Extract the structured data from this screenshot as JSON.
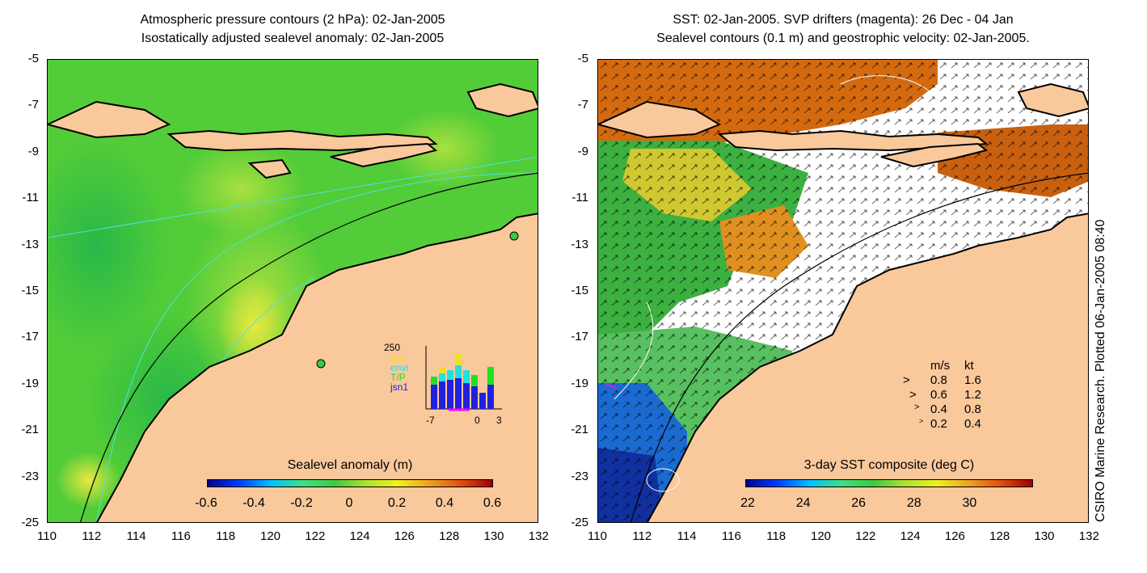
{
  "left_panel": {
    "title_line1": "Atmospheric pressure contours (2 hPa): 02-Jan-2005",
    "title_line2": "Isostatically adjusted sealevel anomaly: 02-Jan-2005",
    "colorbar_label": "Sealevel anomaly (m)",
    "colorbar_ticks": [
      "-0.6",
      "-0.4",
      "-0.2",
      "0",
      "0.2",
      "0.4",
      "0.6"
    ],
    "inset": {
      "ymax_label": "250",
      "legend": [
        {
          "text": "gfo",
          "color": "#f0e020"
        },
        {
          "text": "envi",
          "color": "#20e0e0"
        },
        {
          "text": "T/P",
          "color": "#20e020"
        },
        {
          "text": "jsn1",
          "color": "#2020e0"
        }
      ],
      "x_ticks": [
        "-7",
        "0",
        "3"
      ]
    }
  },
  "right_panel": {
    "title_line1": "SST: 02-Jan-2005. SVP drifters (magenta): 26 Dec - 04 Jan",
    "title_line2": "Sealevel contours (0.1 m) and geostrophic velocity: 02-Jan-2005.",
    "colorbar_label": "3-day SST composite (deg C)",
    "colorbar_ticks": [
      "22",
      "24",
      "26",
      "28",
      "30"
    ],
    "velocity_legend": {
      "header_ms": "m/s",
      "header_kt": "kt",
      "rows": [
        {
          "ms": "0.8",
          "kt": "1.6"
        },
        {
          "ms": "0.6",
          "kt": "1.2"
        },
        {
          "ms": "0.4",
          "kt": "0.8"
        },
        {
          "ms": "0.2",
          "kt": "0.4"
        }
      ]
    }
  },
  "axes": {
    "y_ticks": [
      "-5",
      "-7",
      "-9",
      "-11",
      "-13",
      "-15",
      "-17",
      "-19",
      "-21",
      "-23",
      "-25"
    ],
    "x_ticks": [
      "110",
      "112",
      "114",
      "116",
      "118",
      "120",
      "122",
      "124",
      "126",
      "128",
      "130",
      "132"
    ]
  },
  "credit": "CSIRO Marine Research. Plotted 06-Jan-2005 08:40",
  "colors": {
    "land": "#f9c89b",
    "sealevel_base": "#40c840",
    "sst_warm": "#d46a10",
    "sst_cool": "#1a6ad0"
  }
}
